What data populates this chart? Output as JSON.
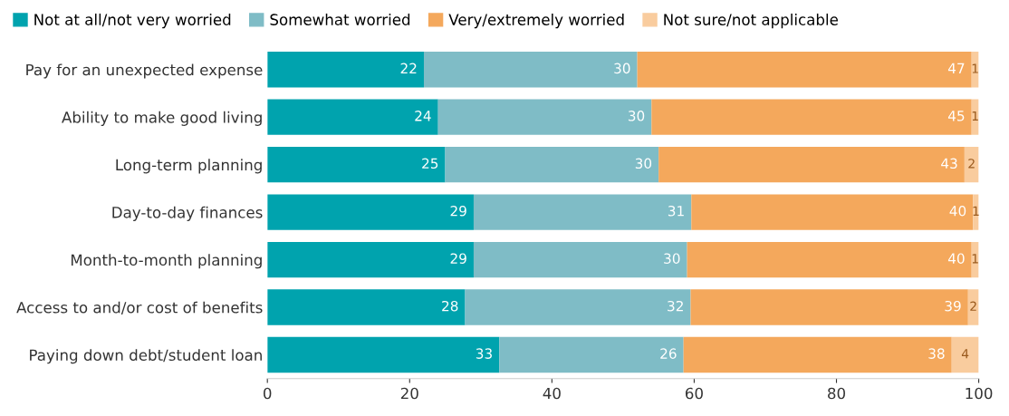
{
  "chart_data": {
    "type": "bar",
    "orientation": "horizontal",
    "stacked": true,
    "categories": [
      "Pay for an unexpected expense",
      "Ability to make good living",
      "Long-term planning",
      "Day-to-day finances",
      "Month-to-month planning",
      "Access to and/or cost of benefits",
      "Paying down debt/student loan"
    ],
    "series": [
      {
        "name": "Not at all/not very worried",
        "color": "#00a3ae",
        "values": [
          22,
          24,
          25,
          29,
          29,
          27.8,
          32.6
        ],
        "value_labels": [
          "22",
          "24",
          "25",
          "29",
          "29",
          "28",
          "33"
        ]
      },
      {
        "name": "Somewhat worried",
        "color": "#7fbcc6",
        "values": [
          30,
          30,
          30,
          30.6,
          30,
          31.7,
          25.9
        ],
        "value_labels": [
          "30",
          "30",
          "30",
          "31",
          "30",
          "32",
          "26"
        ]
      },
      {
        "name": "Very/extremely worried",
        "color": "#f4a85c",
        "values": [
          47,
          45,
          43,
          39.6,
          40,
          39.0,
          37.7
        ],
        "value_labels": [
          "47",
          "45",
          "43",
          "40",
          "40",
          "39",
          "38"
        ]
      },
      {
        "name": "Not sure/not applicable",
        "color": "#f9cc9e",
        "values": [
          1,
          1,
          2,
          0.8,
          1,
          1.5,
          3.8
        ],
        "value_labels": [
          "1",
          "1",
          "2",
          "1",
          "1",
          "2",
          "4"
        ]
      }
    ],
    "xlim": [
      0,
      100
    ],
    "xticks": [
      0,
      20,
      40,
      60,
      80,
      100
    ],
    "grid": false,
    "legend": "top left"
  }
}
